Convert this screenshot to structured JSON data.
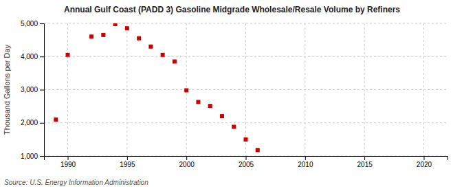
{
  "chart_data": {
    "type": "scatter",
    "title": "Annual Gulf Coast (PADD 3) Gasoline Midgrade Wholesale/Resale Volume by Refiners",
    "y_label": "Thousand Gallons per Day",
    "annotations": [
      "Source: U.S. Energy Information Administration"
    ],
    "x": [
      1989,
      1990,
      1992,
      1993,
      1994,
      1995,
      1996,
      1997,
      1998,
      1999,
      2000,
      2001,
      2002,
      2003,
      2004,
      2005,
      2006
    ],
    "values": [
      2100,
      4050,
      4600,
      4650,
      4980,
      4850,
      4550,
      4300,
      4050,
      3850,
      2980,
      2630,
      2510,
      2200,
      1880,
      1500,
      1180
    ],
    "color": "#cc0000",
    "marker": "square",
    "xlim": [
      1988,
      2022
    ],
    "ylim": [
      1000,
      5000
    ],
    "xticks": [
      1990,
      1995,
      2000,
      2005,
      2010,
      2015,
      2020
    ],
    "yticks": [
      {
        "value": 1000,
        "label": "1,000"
      },
      {
        "value": 2000,
        "label": "2,000"
      },
      {
        "value": 3000,
        "label": "3,000"
      },
      {
        "value": 4000,
        "label": "4,000"
      },
      {
        "value": 5000,
        "label": "5,000"
      }
    ],
    "grid": true
  }
}
